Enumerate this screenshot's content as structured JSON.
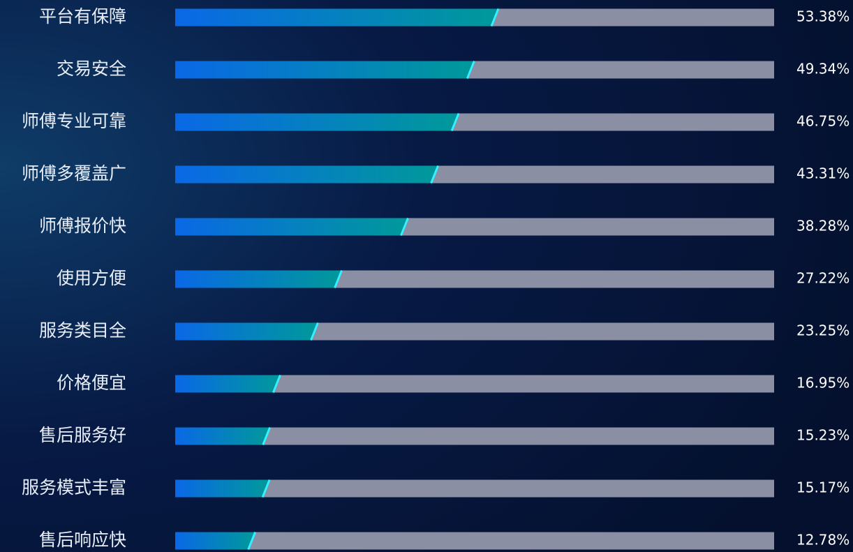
{
  "chart_data": {
    "type": "hbar",
    "categories": [
      "平台有保障",
      "交易安全",
      "师傅专业可靠",
      "师傅多覆盖广",
      "师傅报价快",
      "使用方便",
      "服务类目全",
      "价格便宜",
      "售后服务好",
      "服务模式丰富",
      "售后响应快"
    ],
    "values": [
      53.38,
      49.34,
      46.75,
      43.31,
      38.28,
      27.22,
      23.25,
      16.95,
      15.23,
      15.17,
      12.78
    ],
    "value_labels": [
      "53.38%",
      "49.34%",
      "46.75%",
      "43.31%",
      "38.28%",
      "27.22%",
      "23.25%",
      "16.95%",
      "15.23%",
      "15.17%",
      "12.78%"
    ],
    "xlim": [
      0,
      100
    ],
    "color": [
      "#0a68e6",
      "#00999a"
    ],
    "track_color": "#8a8fa3",
    "accent_color": "#35f0ff"
  }
}
